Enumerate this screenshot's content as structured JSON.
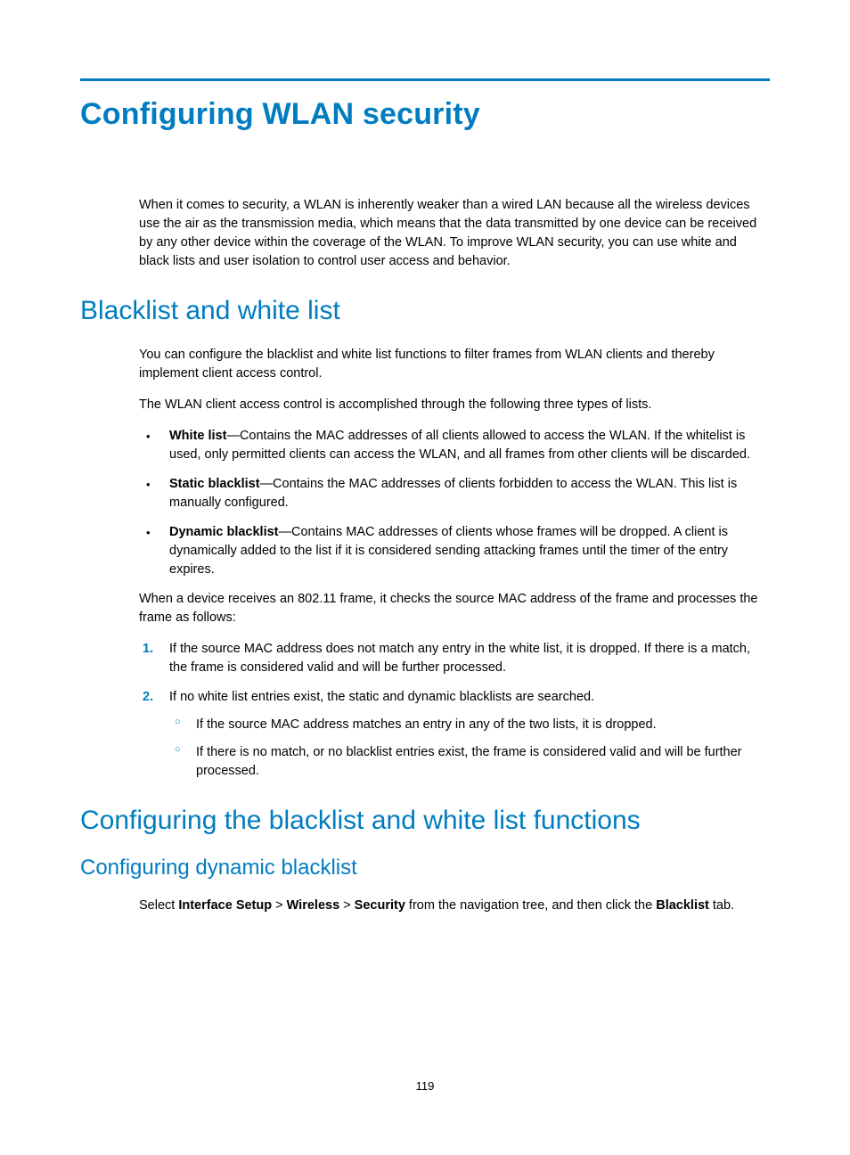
{
  "colors": {
    "accent": "#007cc0",
    "text": "#000000",
    "background": "#ffffff"
  },
  "typography": {
    "body_fontsize": 14.5,
    "h1_fontsize": 34,
    "h2_fontsize": 30,
    "h3_fontsize": 24,
    "font_family": "Arial"
  },
  "page_number": "119",
  "h1": "Configuring WLAN security",
  "intro": "When it comes to security, a WLAN is inherently weaker than a wired LAN because all the wireless devices use the air as the transmission media, which means that the data transmitted by one device can be received by any other device within the coverage of the WLAN. To improve WLAN security, you can use white and black lists and user isolation to control user access and behavior.",
  "section1": {
    "heading": "Blacklist and white list",
    "p1": "You can configure the blacklist and white list functions to filter frames from WLAN clients and thereby implement client access control.",
    "p2": "The WLAN client access control is accomplished through the following three types of lists.",
    "bullets": [
      {
        "term": "White list",
        "desc": "—Contains the MAC addresses of all clients allowed to access the WLAN. If the whitelist is used, only permitted clients can access the WLAN, and all frames from other clients will be discarded."
      },
      {
        "term": "Static blacklist",
        "desc": "—Contains the MAC addresses of clients forbidden to access the WLAN. This list is manually configured."
      },
      {
        "term": "Dynamic blacklist",
        "desc": "—Contains MAC addresses of clients whose frames will be dropped. A client is dynamically added to the list if it is considered sending attacking frames until the timer of the entry expires."
      }
    ],
    "p3": "When a device receives an 802.11 frame, it checks the source MAC address of the frame and processes the frame as follows:",
    "steps": [
      {
        "text": "If the source MAC address does not match any entry in the white list, it is dropped. If there is a match, the frame is considered valid and will be further processed.",
        "sub": []
      },
      {
        "text": "If no white list entries exist, the static and dynamic blacklists are searched.",
        "sub": [
          "If the source MAC address matches an entry in any of the two lists, it is dropped.",
          "If there is no match, or no blacklist entries exist, the frame is considered valid and will be further processed."
        ]
      }
    ]
  },
  "section2": {
    "heading": "Configuring the blacklist and white list functions",
    "sub1": {
      "heading": "Configuring dynamic blacklist",
      "nav": {
        "pre": "Select ",
        "b1": "Interface Setup",
        "sep1": " > ",
        "b2": "Wireless",
        "sep2": " > ",
        "b3": "Security",
        "mid": " from the navigation tree, and then click the ",
        "b4": "Blacklist",
        "post": " tab."
      }
    }
  }
}
